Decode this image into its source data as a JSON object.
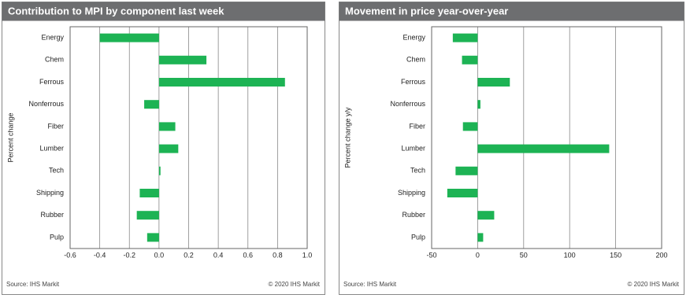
{
  "chart_data": [
    {
      "type": "bar",
      "orientation": "horizontal",
      "title": "Contribution  to MPI by component last week",
      "y_label": "Percent change",
      "categories": [
        "Energy",
        "Chem",
        "Ferrous",
        "Nonferrous",
        "Fiber",
        "Lumber",
        "Tech",
        "Shipping",
        "Rubber",
        "Pulp"
      ],
      "values": [
        -0.4,
        0.32,
        0.85,
        -0.1,
        0.11,
        0.13,
        0.01,
        -0.13,
        -0.15,
        -0.08
      ],
      "color": "#1db354",
      "xlim": [
        -0.6,
        1.0
      ],
      "xticks": [
        -0.6,
        -0.4,
        -0.2,
        {
          "value": 0,
          "label": "0.0"
        },
        0.2,
        0.4,
        0.6,
        0.8,
        {
          "value": 1,
          "label": "1.0"
        }
      ],
      "grid": true,
      "source": "Source:  IHS Markit",
      "copyright": "© 2020  IHS Markit"
    },
    {
      "type": "bar",
      "orientation": "horizontal",
      "title": "Movement in price year-over-year",
      "y_label": "Percent change y/y",
      "categories": [
        "Energy",
        "Chem",
        "Ferrous",
        "Nonferrous",
        "Fiber",
        "Lumber",
        "Tech",
        "Shipping",
        "Rubber",
        "Pulp"
      ],
      "values": [
        -27,
        -17,
        35,
        3,
        -16,
        143,
        -24,
        -33,
        18,
        6
      ],
      "color": "#1db354",
      "xlim": [
        -50,
        200
      ],
      "xticks": [
        -50,
        0,
        50,
        100,
        150,
        200
      ],
      "grid": true,
      "source": "Source:  IHS Markit",
      "copyright": "© 2020  IHS Markit"
    }
  ]
}
